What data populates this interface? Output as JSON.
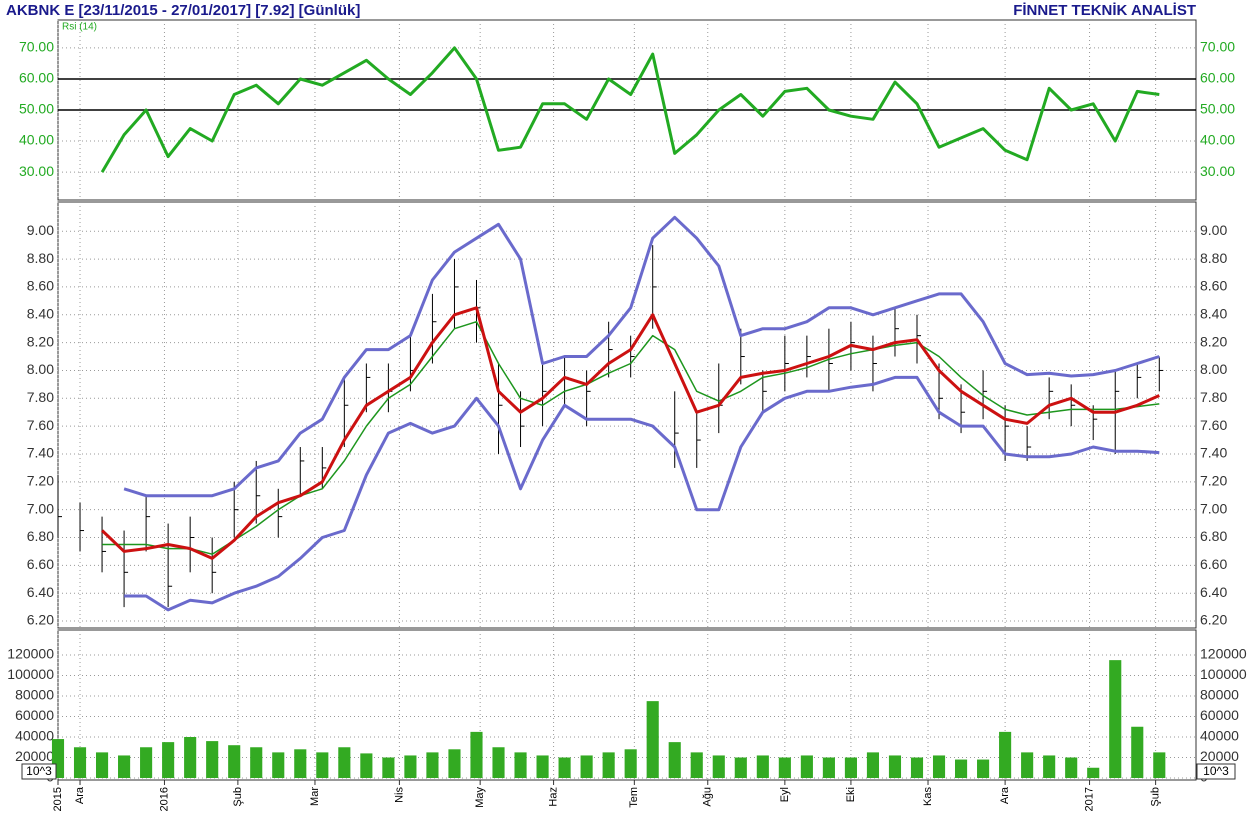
{
  "chart_data": {
    "type": "stock",
    "title": "AKBNK E  [23/11/2015 - 27/01/2017]  [7.92]  [Günlük]",
    "subtitle": "FİNNET TEKNİK ANALİST",
    "x": [
      0,
      6,
      12,
      18,
      24,
      30,
      36,
      42,
      48,
      54,
      60,
      66,
      72,
      78,
      84,
      90,
      96,
      102,
      108,
      114,
      120,
      126,
      132,
      138,
      144,
      150,
      156,
      162,
      168,
      174,
      180,
      186,
      192,
      198,
      204,
      210,
      216,
      222,
      228,
      234,
      240,
      246,
      252,
      258,
      264,
      270,
      276,
      282,
      288,
      294,
      300
    ],
    "xlim": [
      0,
      310
    ],
    "xticks": [
      {
        "value": 0,
        "label": "2015"
      },
      {
        "value": 6,
        "label": "Ara"
      },
      {
        "value": 29,
        "label": "2016"
      },
      {
        "value": 49,
        "label": "Şub"
      },
      {
        "value": 70,
        "label": "Mar"
      },
      {
        "value": 93,
        "label": "Nis"
      },
      {
        "value": 115,
        "label": "May"
      },
      {
        "value": 135,
        "label": "Haz"
      },
      {
        "value": 157,
        "label": "Tem"
      },
      {
        "value": 177,
        "label": "Ağu"
      },
      {
        "value": 198,
        "label": "Eyl"
      },
      {
        "value": 216,
        "label": "Eki"
      },
      {
        "value": 237,
        "label": "Kas"
      },
      {
        "value": 258,
        "label": "Ara"
      },
      {
        "value": 281,
        "label": "2017"
      },
      {
        "value": 299,
        "label": "Şub"
      }
    ],
    "grid": true,
    "panels": [
      {
        "type": "line",
        "label": "Rsi (14)",
        "label_color": "#22aa22",
        "ylim": [
          21,
          79
        ],
        "yticks": [
          {
            "value": 30,
            "label": "30.00"
          },
          {
            "value": 40,
            "label": "40.00"
          },
          {
            "value": 50,
            "label": "50.00"
          },
          {
            "value": 60,
            "label": "60.00"
          },
          {
            "value": 70,
            "label": "70.00"
          }
        ],
        "tick_color": "#22aa22",
        "hlines": [
          50,
          60
        ],
        "series": [
          {
            "color": "#22aa22",
            "line_width": 3,
            "values": [
              null,
              null,
              30,
              42,
              50,
              35,
              44,
              40,
              55,
              58,
              52,
              60,
              58,
              62,
              66,
              60,
              55,
              62,
              70,
              60,
              37,
              38,
              52,
              52,
              47,
              60,
              55,
              68,
              36,
              42,
              50,
              55,
              48,
              56,
              57,
              50,
              48,
              47,
              59,
              52,
              38,
              41,
              44,
              37,
              34,
              57,
              50,
              52,
              40,
              56,
              55
            ]
          }
        ]
      },
      {
        "type": "ohlc",
        "ylim": [
          6.15,
          9.21
        ],
        "yticks": [
          {
            "value": 6.2,
            "label": "6.20"
          },
          {
            "value": 6.4,
            "label": "6.40"
          },
          {
            "value": 6.6,
            "label": "6.60"
          },
          {
            "value": 6.8,
            "label": "6.80"
          },
          {
            "value": 7,
            "label": "7.00"
          },
          {
            "value": 7.2,
            "label": "7.20"
          },
          {
            "value": 7.4,
            "label": "7.40"
          },
          {
            "value": 7.6,
            "label": "7.60"
          },
          {
            "value": 7.8,
            "label": "7.80"
          },
          {
            "value": 8,
            "label": "8.00"
          },
          {
            "value": 8.2,
            "label": "8.20"
          },
          {
            "value": 8.4,
            "label": "8.40"
          },
          {
            "value": 8.6,
            "label": "8.60"
          },
          {
            "value": 8.8,
            "label": "8.80"
          },
          {
            "value": 9,
            "label": "9.00"
          }
        ],
        "tick_color": "#333333",
        "color": "#000000",
        "high": [
          7.25,
          7.05,
          6.95,
          6.85,
          7.1,
          6.9,
          6.95,
          6.8,
          7.2,
          7.35,
          7.15,
          7.45,
          7.45,
          7.95,
          8.05,
          8.05,
          8.25,
          8.55,
          8.8,
          8.65,
          8.05,
          7.85,
          8.05,
          8.1,
          8.0,
          8.35,
          8.25,
          8.9,
          7.85,
          7.7,
          8.05,
          8.3,
          8.0,
          8.25,
          8.25,
          8.3,
          8.35,
          8.25,
          8.45,
          8.4,
          8.05,
          7.9,
          8.0,
          7.75,
          7.6,
          7.95,
          7.9,
          7.75,
          8.0,
          8.05,
          8.1
        ],
        "low": [
          6.8,
          6.7,
          6.55,
          6.3,
          6.7,
          6.3,
          6.55,
          6.4,
          6.8,
          6.9,
          6.8,
          7.1,
          7.15,
          7.45,
          7.7,
          7.7,
          7.85,
          8.05,
          8.3,
          8.2,
          7.4,
          7.45,
          7.6,
          7.75,
          7.6,
          7.95,
          7.95,
          8.3,
          7.3,
          7.3,
          7.55,
          7.9,
          7.7,
          7.85,
          7.95,
          7.85,
          8.0,
          7.85,
          8.1,
          8.05,
          7.65,
          7.55,
          7.65,
          7.35,
          7.35,
          7.65,
          7.6,
          7.5,
          7.4,
          7.8,
          7.85
        ],
        "close": [
          6.95,
          6.85,
          6.7,
          6.55,
          6.95,
          6.45,
          6.8,
          6.55,
          7.0,
          7.1,
          6.95,
          7.35,
          7.3,
          7.75,
          7.95,
          7.85,
          8.0,
          8.35,
          8.6,
          8.45,
          7.75,
          7.6,
          7.85,
          7.95,
          7.85,
          8.15,
          8.1,
          8.6,
          7.55,
          7.5,
          7.75,
          8.1,
          7.85,
          8.05,
          8.1,
          8.05,
          8.2,
          8.05,
          8.3,
          8.25,
          7.8,
          7.7,
          7.85,
          7.6,
          7.45,
          7.85,
          7.75,
          7.65,
          7.85,
          7.95,
          8.0
        ],
        "series": [
          {
            "color": "#6a6acc",
            "line_width": 3,
            "values": [
              null,
              null,
              null,
              7.15,
              7.1,
              7.1,
              7.1,
              7.1,
              7.15,
              7.3,
              7.35,
              7.55,
              7.65,
              7.95,
              8.15,
              8.15,
              8.25,
              8.65,
              8.85,
              8.95,
              9.05,
              8.8,
              8.05,
              8.1,
              8.1,
              8.25,
              8.45,
              8.95,
              9.1,
              8.95,
              8.75,
              8.25,
              8.3,
              8.3,
              8.35,
              8.45,
              8.45,
              8.4,
              8.45,
              8.5,
              8.55,
              8.55,
              8.35,
              8.05,
              7.97,
              7.98,
              7.96,
              7.97,
              8.0,
              8.05,
              8.1
            ]
          },
          {
            "color": "#6a6acc",
            "line_width": 3,
            "values": [
              null,
              null,
              null,
              6.38,
              6.38,
              6.28,
              6.35,
              6.33,
              6.4,
              6.45,
              6.52,
              6.65,
              6.8,
              6.85,
              7.25,
              7.55,
              7.62,
              7.55,
              7.6,
              7.8,
              7.6,
              7.15,
              7.5,
              7.75,
              7.65,
              7.65,
              7.65,
              7.6,
              7.45,
              7.0,
              7.0,
              7.45,
              7.7,
              7.8,
              7.85,
              7.85,
              7.88,
              7.9,
              7.95,
              7.95,
              7.7,
              7.6,
              7.6,
              7.4,
              7.38,
              7.38,
              7.4,
              7.45,
              7.42,
              7.42,
              7.41
            ]
          },
          {
            "color": "#1e961e",
            "line_width": 1.5,
            "values": [
              null,
              null,
              6.75,
              6.75,
              6.75,
              6.72,
              6.72,
              6.68,
              6.78,
              6.88,
              7.0,
              7.1,
              7.15,
              7.35,
              7.6,
              7.8,
              7.9,
              8.1,
              8.3,
              8.35,
              8.05,
              7.8,
              7.75,
              7.85,
              7.9,
              7.98,
              8.05,
              8.25,
              8.15,
              7.85,
              7.78,
              7.85,
              7.95,
              7.98,
              8.02,
              8.08,
              8.12,
              8.15,
              8.18,
              8.2,
              8.1,
              7.95,
              7.82,
              7.72,
              7.68,
              7.7,
              7.72,
              7.72,
              7.72,
              7.74,
              7.76
            ]
          },
          {
            "color": "#cc1111",
            "line_width": 3,
            "values": [
              null,
              null,
              6.85,
              6.7,
              6.72,
              6.75,
              6.72,
              6.65,
              6.78,
              6.95,
              7.05,
              7.1,
              7.2,
              7.5,
              7.75,
              7.85,
              7.95,
              8.2,
              8.4,
              8.45,
              7.85,
              7.7,
              7.8,
              7.95,
              7.9,
              8.05,
              8.15,
              8.4,
              8.05,
              7.7,
              7.75,
              7.95,
              7.98,
              8.0,
              8.05,
              8.1,
              8.18,
              8.15,
              8.2,
              8.22,
              8.0,
              7.85,
              7.75,
              7.65,
              7.62,
              7.75,
              7.8,
              7.7,
              7.7,
              7.75,
              7.82
            ]
          }
        ]
      },
      {
        "type": "bar",
        "ylim": [
          -1950,
          144400
        ],
        "yticks": [
          0,
          20000,
          40000,
          60000,
          80000,
          100000,
          120000
        ],
        "tick_color": "#333333",
        "unit_label": "10^3",
        "color": "#33aa22",
        "values": [
          38000,
          30000,
          25000,
          22000,
          30000,
          35000,
          40000,
          36000,
          32000,
          30000,
          25000,
          28000,
          25000,
          30000,
          24000,
          20000,
          22000,
          25000,
          28000,
          45000,
          30000,
          25000,
          22000,
          20000,
          22000,
          25000,
          28000,
          75000,
          35000,
          25000,
          22000,
          20000,
          22000,
          20000,
          22000,
          20000,
          20000,
          25000,
          22000,
          20000,
          22000,
          18000,
          18000,
          45000,
          25000,
          22000,
          20000,
          10000,
          115000,
          50000,
          25000
        ]
      }
    ]
  }
}
